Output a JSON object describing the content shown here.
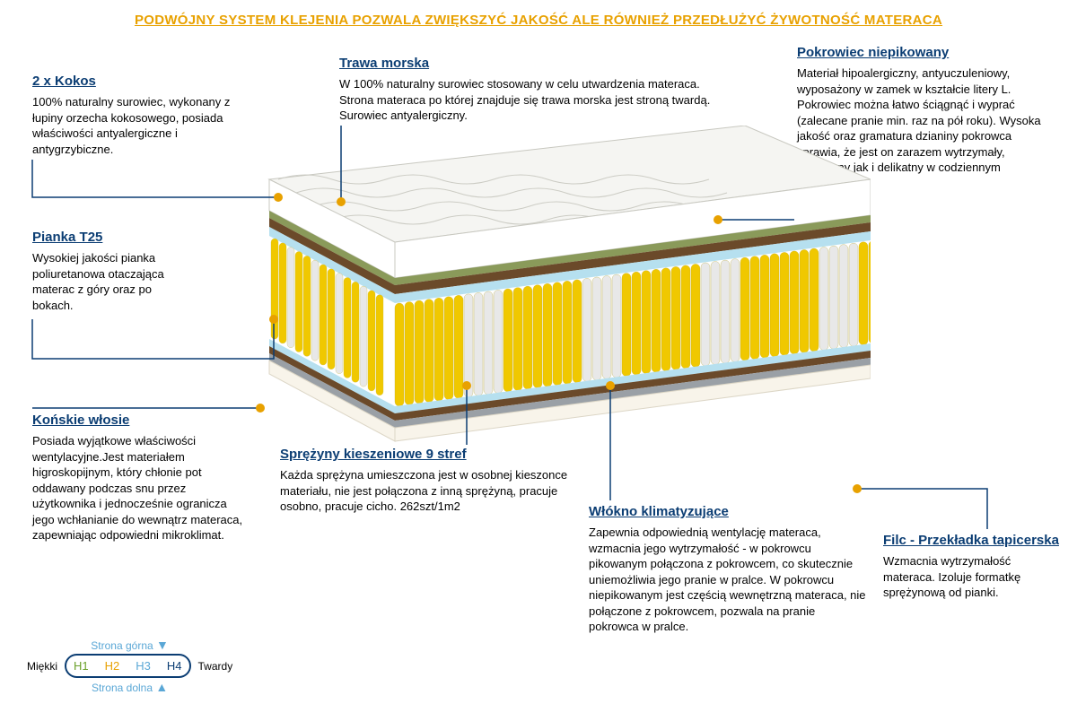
{
  "colors": {
    "blue": "#0b3d73",
    "accent": "#e8a100",
    "text": "#222222",
    "green": "#6aa02a",
    "lightblue": "#5aa7d6",
    "gray": "#666666"
  },
  "header": "PODWÓJNY SYSTEM KLEJENIA POZWALA ZWIĘKSZYĆ JAKOŚĆ ALE RÓWNIEŻ PRZEDŁUŻYĆ ŻYWOTNOŚĆ MATERACA",
  "blocks": {
    "kokos": {
      "title": "2 x Kokos",
      "body": "100% naturalny surowiec, wykonany z łupiny orzecha kokosowego, posiada właściwości antyalergiczne i antygrzybiczne."
    },
    "trawa": {
      "title": "Trawa morska",
      "body": "W 100% naturalny surowiec stosowany w celu utwardzenia materaca. Strona materaca po której znajduje się trawa morska jest stroną twardą. Surowiec antyalergiczny."
    },
    "pokrowiec": {
      "title": "Pokrowiec  niepikowany",
      "body": "Materiał hipoalergiczny, antyuczuleniowy, wyposażony w zamek w kształcie litery L. Pokrowiec można łatwo ściągnąć i wyprać (zalecane pranie min.  raz na pół roku). Wysoka jakość oraz gramatura dzianiny pokrowca sprawia, że jest on zarazem wytrzymały, przyjemny jak i delikatny w codziennym użytkowaniu."
    },
    "pianka": {
      "title": "Pianka T25",
      "body": "Wysokiej jakości pianka poliuretanowa otaczająca materac z góry oraz po bokach."
    },
    "konskie": {
      "title": "Końskie włosie",
      "body": "Posiada wyjątkowe właściwości wentylacyjne.Jest materiałem higroskopijnym, który chłonie pot oddawany podczas snu przez użytkownika i jednocześnie ogranicza jego wchłanianie do wewnątrz materaca, zapewniając odpowiedni mikroklimat."
    },
    "sprezyny": {
      "title": "Sprężyny kieszeniowe 9 stref",
      "body": "Każda sprężyna umieszczona jest w osobnej kieszonce materiału, nie jest połączona z inną sprężyną, pracuje osobno, pracuje cicho. 262szt/1m2"
    },
    "wlokno": {
      "title": "Włókno klimatyzujące",
      "body": "Zapewnia odpowiednią wentylację materaca, wzmacnia jego wytrzymałość - w pokrowcu pikowanym połączona z pokrowcem, co skutecznie uniemożliwia jego pranie w pralce. W pokrowcu niepikowanym jest częścią wewnętrzną materaca, nie połączone z pokrowcem, pozwala na pranie pokrowca w pralce."
    },
    "filc": {
      "title": "Filc - Przekładka tapicerska",
      "body": "Wzmacnia wytrzymałość materaca. Izoluje formatkę sprężynową od pianki."
    }
  },
  "firmness": {
    "top_label": "Strona górna",
    "bottom_label": "Strona dolna",
    "left": "Miękki",
    "right": "Twardy",
    "cells": [
      "H1",
      "H2",
      "H3",
      "H4"
    ],
    "cell_colors": [
      "#6aa02a",
      "#e8a100",
      "#5aa7d6",
      "#0b3d73"
    ]
  },
  "mattress": {
    "spring_zones": [
      "#f0c800",
      "#e8e8e8",
      "#f0c800",
      "#e8e8e8",
      "#f0c800",
      "#e8e8e8",
      "#f0c800",
      "#e8e8e8",
      "#f0c800"
    ],
    "zone_widths": [
      80,
      50,
      90,
      50,
      95,
      50,
      90,
      50,
      85
    ],
    "cover_fill": "#f5f5f2",
    "cover_line": "#c8c8c0",
    "coconut": "#6b4a2a",
    "seagrass": "#8a9a5a",
    "foam": "#f8f4ea",
    "felt": "#9aa0a6",
    "climate": "#b6e0ef"
  }
}
